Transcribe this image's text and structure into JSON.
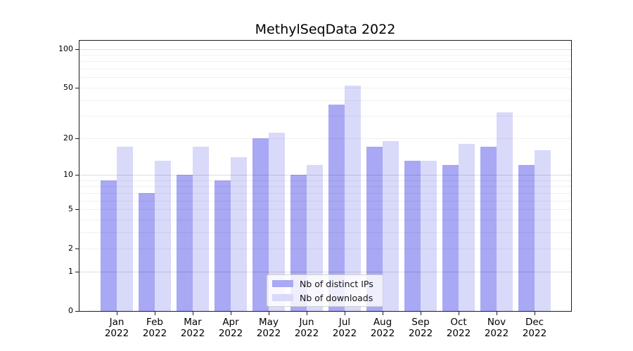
{
  "title": "MethylSeqData 2022",
  "chart_data": {
    "type": "bar",
    "title": "MethylSeqData 2022",
    "categories": [
      "Jan 2022",
      "Feb 2022",
      "Mar 2022",
      "Apr 2022",
      "May 2022",
      "Jun 2022",
      "Jul 2022",
      "Aug 2022",
      "Sep 2022",
      "Oct 2022",
      "Nov 2022",
      "Dec 2022"
    ],
    "series": [
      {
        "name": "Nb of distinct IPs",
        "color": "#a8a8f4",
        "values": [
          9,
          7,
          10,
          9,
          20,
          10,
          37,
          17,
          13,
          12,
          17,
          12
        ]
      },
      {
        "name": "Nb of downloads",
        "color": "#d9d9fa",
        "values": [
          17,
          13,
          17,
          14,
          22,
          12,
          52,
          19,
          13,
          18,
          32,
          16
        ]
      }
    ],
    "y_axis": {
      "scale": "log1p",
      "ticks": [
        100,
        50,
        20,
        10,
        5,
        2,
        1,
        0
      ],
      "range": [
        0,
        116
      ]
    },
    "x_axis": {
      "label": "",
      "tick_style": "month-over-year"
    },
    "grid": true,
    "legend_position": "lower-center",
    "colors": {
      "frame": "#1c1c1c",
      "grid_major": "#dddddd",
      "grid_minor": "#efefef",
      "background": "#ffffff"
    }
  }
}
